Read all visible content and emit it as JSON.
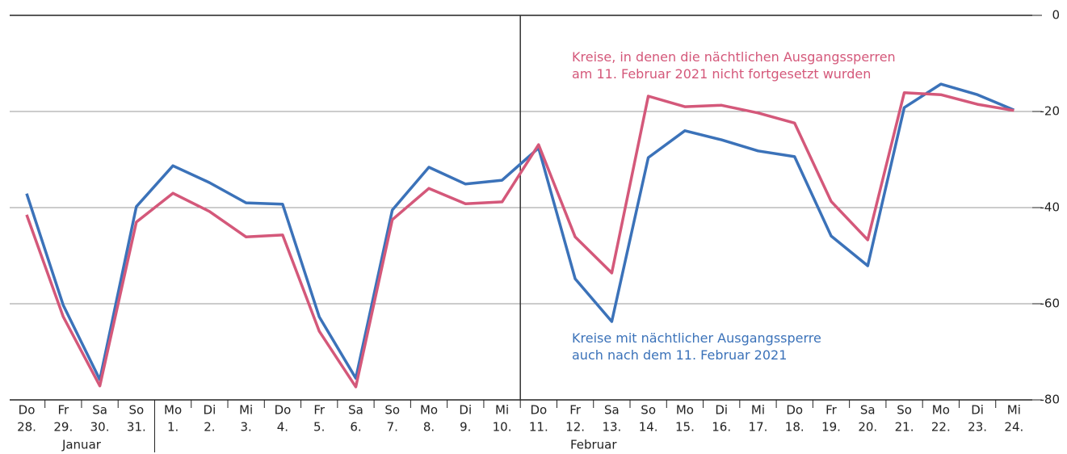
{
  "chart_data": {
    "type": "line",
    "categories": [
      [
        "Do",
        "28."
      ],
      [
        "Fr",
        "29."
      ],
      [
        "Sa",
        "30."
      ],
      [
        "So",
        "31."
      ],
      [
        "Mo",
        "1."
      ],
      [
        "Di",
        "2."
      ],
      [
        "Mi",
        "3."
      ],
      [
        "Do",
        "4."
      ],
      [
        "Fr",
        "5."
      ],
      [
        "Sa",
        "6."
      ],
      [
        "So",
        "7."
      ],
      [
        "Mo",
        "8."
      ],
      [
        "Di",
        "9."
      ],
      [
        "Mi",
        "10."
      ],
      [
        "Do",
        "11."
      ],
      [
        "Fr",
        "12."
      ],
      [
        "Sa",
        "13."
      ],
      [
        "So",
        "14."
      ],
      [
        "Mo",
        "15."
      ],
      [
        "Di",
        "16."
      ],
      [
        "Mi",
        "17."
      ],
      [
        "Do",
        "18."
      ],
      [
        "Fr",
        "19."
      ],
      [
        "Sa",
        "20."
      ],
      [
        "So",
        "21."
      ],
      [
        "Mo",
        "22."
      ],
      [
        "Di",
        "23."
      ],
      [
        "Mi",
        "24."
      ]
    ],
    "months": [
      "Januar",
      "Februar"
    ],
    "series": [
      {
        "name": "Kreise mit nächtlicher Ausgangssperre auch nach dem 11. Februar 2021",
        "color": "#3b72b9",
        "values": [
          -37.1,
          -60.3,
          -75.8,
          -39.8,
          -31.3,
          -34.8,
          -39.0,
          -39.3,
          -62.7,
          -75.5,
          -40.5,
          -31.6,
          -35.1,
          -34.3,
          -27.6,
          -54.8,
          -63.7,
          -29.6,
          -24.0,
          -25.9,
          -28.2,
          -29.4,
          -45.9,
          -52.1,
          -19.2,
          -14.3,
          -16.5,
          -19.7
        ]
      },
      {
        "name": "Kreise, in denen die nächtlichen Ausgangssperren am 11. Februar 2021 nicht fortgesetzt wurden",
        "color": "#d4587a",
        "values": [
          -41.5,
          -62.7,
          -77.1,
          -43.0,
          -37.0,
          -40.8,
          -46.1,
          -45.7,
          -65.7,
          -77.3,
          -42.5,
          -36.0,
          -39.2,
          -38.8,
          -26.9,
          -46.1,
          -53.6,
          -16.8,
          -19.0,
          -18.7,
          -20.3,
          -22.4,
          -38.7,
          -46.7,
          -16.1,
          -16.5,
          -18.5,
          -19.8
        ]
      }
    ],
    "ylim": [
      -80,
      0
    ],
    "yticks": [
      0,
      -20,
      -40,
      -60,
      -80
    ],
    "grid": true
  }
}
